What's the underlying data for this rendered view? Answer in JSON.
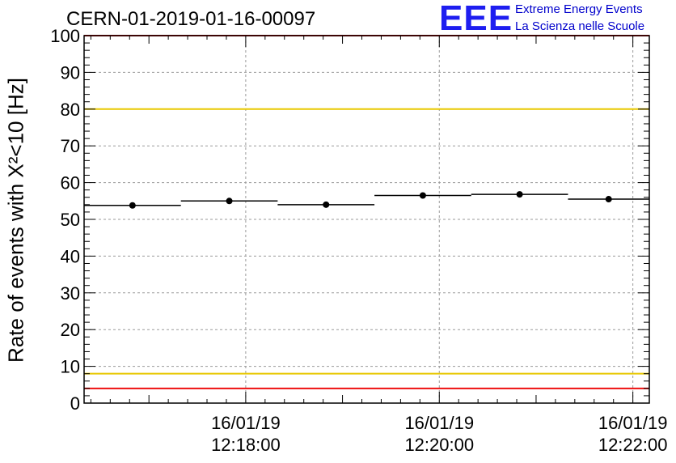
{
  "header": {
    "run_title": "CERN-01-2019-01-16-00097",
    "logo_text": "EEE",
    "logo_line1": "Extreme Energy Events",
    "logo_line2": "La Scienza nelle Scuole"
  },
  "colors": {
    "data": "#000000",
    "yellow_limit": "#e8c800",
    "red_limit": "#ee1111",
    "logo": "#1e1ef0"
  },
  "chart_data": {
    "type": "scatter",
    "title": "CERN-01-2019-01-16-00097",
    "ylabel": "Rate of events with X²<10 [Hz]",
    "xlabel": "",
    "ylim": [
      0,
      100
    ],
    "yticks": [
      0,
      10,
      20,
      30,
      40,
      50,
      60,
      70,
      80,
      90,
      100
    ],
    "xlim_minutes": [
      16.33,
      22.17
    ],
    "xticks": [
      {
        "minute": 18,
        "date": "16/01/19",
        "time": "12:18:00"
      },
      {
        "minute": 20,
        "date": "16/01/19",
        "time": "12:20:00"
      },
      {
        "minute": 22,
        "date": "16/01/19",
        "time": "12:22:00"
      }
    ],
    "grid": true,
    "points": [
      {
        "x_start": 16.33,
        "x_end": 17.33,
        "y": 53.8
      },
      {
        "x_start": 17.33,
        "x_end": 18.33,
        "y": 55.0
      },
      {
        "x_start": 18.33,
        "x_end": 19.33,
        "y": 54.0
      },
      {
        "x_start": 19.33,
        "x_end": 20.33,
        "y": 56.5
      },
      {
        "x_start": 20.33,
        "x_end": 21.33,
        "y": 56.8
      },
      {
        "x_start": 21.33,
        "x_end": 22.17,
        "y": 55.5
      }
    ],
    "reference_lines": [
      {
        "y": 100,
        "color": "red"
      },
      {
        "y": 80,
        "color": "yellow"
      },
      {
        "y": 8,
        "color": "yellow"
      },
      {
        "y": 4,
        "color": "red"
      }
    ]
  }
}
